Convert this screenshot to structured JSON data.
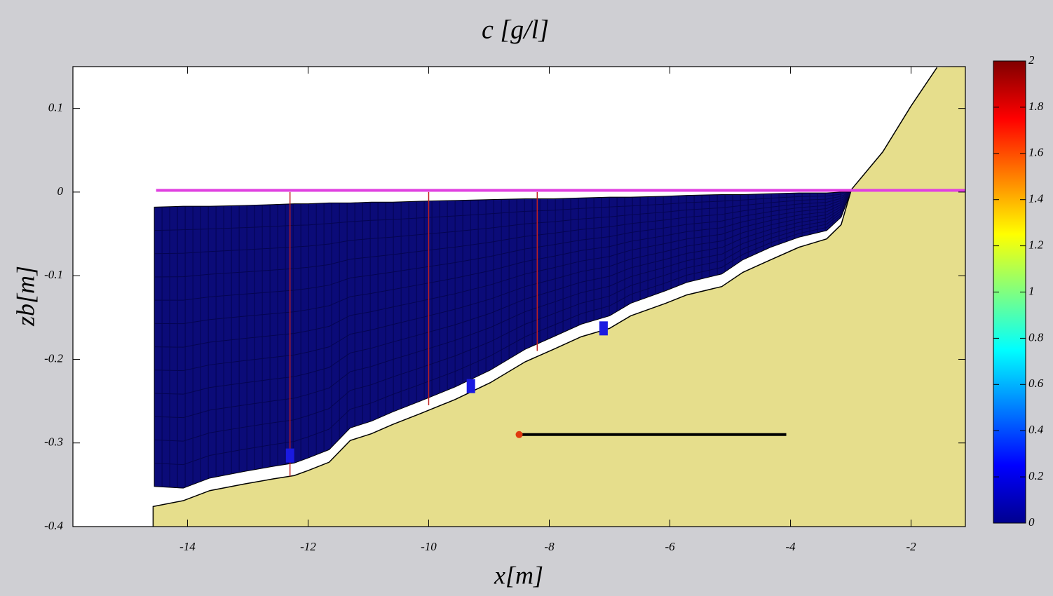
{
  "chart_data": {
    "type": "profile",
    "title": "c [g/l]",
    "xlabel": "x[m]",
    "ylabel": "zb[m]",
    "xlim": [
      -15.9,
      -1.1
    ],
    "ylim": [
      -0.4,
      0.15
    ],
    "xticks": [
      -14,
      -12,
      -10,
      -8,
      -6,
      -4,
      -2
    ],
    "yticks": [
      -0.4,
      -0.3,
      -0.2,
      -0.1,
      0,
      0.1
    ],
    "bed": {
      "color": "#e6de8c",
      "x": [
        -14.57,
        -14.57,
        -14.07,
        -13.63,
        -13.05,
        -12.58,
        -12.23,
        -12.0,
        -11.65,
        -11.3,
        -10.95,
        -10.6,
        -10.14,
        -9.56,
        -8.98,
        -8.4,
        -7.93,
        -7.47,
        -7.0,
        -6.65,
        -6.07,
        -5.72,
        -5.14,
        -4.79,
        -4.33,
        -3.86,
        -3.4,
        -3.16,
        -2.99,
        -2.47,
        -2.0,
        -1.57
      ],
      "values": [
        -0.4,
        -0.376,
        -0.369,
        -0.357,
        -0.349,
        -0.343,
        -0.339,
        -0.333,
        -0.323,
        -0.297,
        -0.289,
        -0.278,
        -0.265,
        -0.248,
        -0.228,
        -0.203,
        -0.188,
        -0.173,
        -0.163,
        -0.148,
        -0.133,
        -0.123,
        -0.113,
        -0.096,
        -0.081,
        -0.066,
        -0.056,
        -0.039,
        0.003,
        0.048,
        0.103,
        0.149
      ]
    },
    "water": {
      "color": "#0b0b78",
      "x": [
        -14.55,
        -14.07,
        -13.63,
        -13.05,
        -12.58,
        -12.23,
        -12.0,
        -11.65,
        -11.3,
        -10.95,
        -10.6,
        -10.14,
        -9.56,
        -8.98,
        -8.4,
        -7.93,
        -7.47,
        -7.0,
        -6.65,
        -6.07,
        -5.72,
        -5.14,
        -4.79,
        -4.33,
        -3.86,
        -3.4,
        -3.16,
        -3.0
      ],
      "top": [
        -0.018,
        -0.017,
        -0.017,
        -0.016,
        -0.015,
        -0.014,
        -0.014,
        -0.013,
        -0.013,
        -0.012,
        -0.012,
        -0.011,
        -0.01,
        -0.009,
        -0.008,
        -0.008,
        -0.007,
        -0.006,
        -0.006,
        -0.005,
        -0.004,
        -0.003,
        -0.003,
        -0.002,
        -0.001,
        -0.001,
        0.0,
        0.0
      ],
      "bottom": [
        -0.352,
        -0.354,
        -0.342,
        -0.334,
        -0.328,
        -0.324,
        -0.318,
        -0.308,
        -0.282,
        -0.274,
        -0.263,
        -0.25,
        -0.233,
        -0.213,
        -0.188,
        -0.173,
        -0.158,
        -0.148,
        -0.133,
        -0.118,
        -0.108,
        -0.098,
        -0.081,
        -0.066,
        -0.054,
        -0.046,
        -0.03,
        0.0
      ]
    },
    "surface": {
      "color": "#e040e0",
      "x": [
        -14.52,
        -1.1
      ],
      "values": [
        0.002,
        0.002
      ]
    },
    "probes": {
      "color": "#c02020",
      "x": [
        -12.3,
        -10.0,
        -8.2
      ],
      "top": [
        0,
        0,
        0
      ],
      "bottom": [
        -0.34,
        -0.255,
        -0.19
      ]
    },
    "markers": {
      "color": "#1a1ae0",
      "x": [
        -12.3,
        -9.3,
        -7.1
      ],
      "values": [
        -0.315,
        -0.232,
        -0.163
      ]
    },
    "segment": {
      "color": "#000000",
      "dot_color": "#e03a10",
      "x": [
        -8.5,
        -4.07
      ],
      "values": [
        -0.29,
        -0.29
      ]
    },
    "colorbar": {
      "colormap": "jet",
      "lim": [
        0,
        2
      ],
      "ticks": [
        0,
        0.2,
        0.4,
        0.6,
        0.8,
        1,
        1.2,
        1.4,
        1.6,
        1.8,
        2
      ]
    }
  }
}
